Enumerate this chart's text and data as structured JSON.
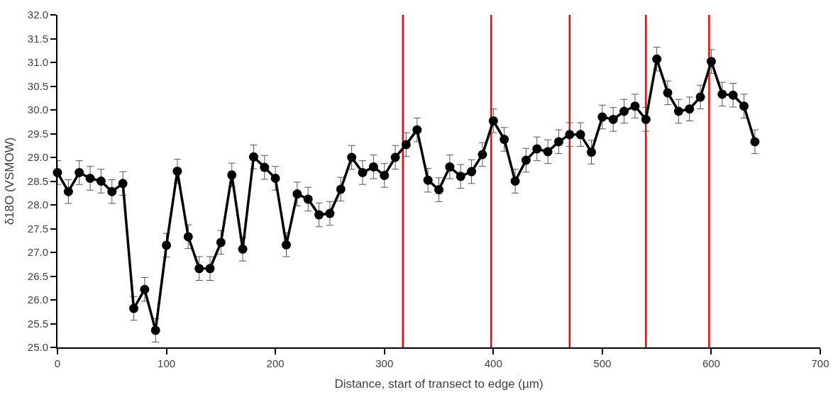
{
  "chart_data": {
    "type": "line",
    "xlabel": "Distance, start of transect to edge (µm)",
    "ylabel": "δ18O (VSMOW)",
    "x": [
      0,
      10,
      20,
      30,
      40,
      50,
      60,
      70,
      80,
      90,
      100,
      110,
      120,
      130,
      140,
      150,
      160,
      170,
      180,
      190,
      200,
      210,
      220,
      230,
      240,
      250,
      260,
      270,
      280,
      290,
      300,
      310,
      320,
      330,
      340,
      350,
      360,
      370,
      380,
      390,
      400,
      410,
      420,
      430,
      440,
      450,
      460,
      470,
      480,
      490,
      500,
      510,
      520,
      530,
      540,
      550,
      560,
      570,
      580,
      590,
      600,
      610,
      620,
      630,
      640
    ],
    "series": [
      {
        "color": "#000000",
        "values": [
          28.68,
          28.28,
          28.68,
          28.56,
          28.5,
          28.28,
          28.45,
          25.82,
          26.22,
          25.36,
          27.15,
          28.71,
          27.33,
          26.66,
          26.66,
          27.21,
          28.63,
          27.07,
          29.01,
          28.79,
          28.56,
          27.16,
          28.23,
          28.12,
          27.79,
          27.82,
          28.33,
          29.0,
          28.68,
          28.8,
          28.62,
          29.0,
          29.27,
          29.58,
          28.52,
          28.32,
          28.8,
          28.6,
          28.7,
          29.06,
          29.77,
          29.38,
          28.5,
          28.94,
          29.18,
          29.12,
          29.33,
          29.48,
          29.48,
          29.11,
          29.85,
          29.8,
          29.97,
          30.08,
          29.8,
          31.07,
          30.36,
          29.97,
          30.02,
          30.27,
          31.02,
          30.33,
          30.31,
          30.08,
          29.33
        ],
        "errors": [
          0.25,
          0.25,
          0.25,
          0.25,
          0.25,
          0.25,
          0.25,
          0.25,
          0.25,
          0.25,
          0.25,
          0.25,
          0.25,
          0.25,
          0.25,
          0.25,
          0.25,
          0.25,
          0.25,
          0.25,
          0.25,
          0.25,
          0.25,
          0.25,
          0.25,
          0.25,
          0.25,
          0.25,
          0.25,
          0.25,
          0.25,
          0.25,
          0.25,
          0.25,
          0.25,
          0.25,
          0.25,
          0.25,
          0.25,
          0.25,
          0.25,
          0.25,
          0.25,
          0.25,
          0.25,
          0.25,
          0.25,
          0.25,
          0.25,
          0.25,
          0.25,
          0.25,
          0.25,
          0.25,
          0.25,
          0.25,
          0.25,
          0.25,
          0.25,
          0.25,
          0.25,
          0.25,
          0.25,
          0.25,
          0.25
        ]
      }
    ],
    "marker": "circle",
    "line_style": "solid",
    "grid": false,
    "xlim": [
      0,
      700
    ],
    "xticks": [
      0,
      100,
      200,
      300,
      400,
      500,
      600,
      700
    ],
    "ylim": [
      25.0,
      32.0
    ],
    "yticks": [
      {
        "value": 25,
        "label": "25.0"
      },
      {
        "value": 25.5,
        "label": "25.5"
      },
      {
        "value": 26,
        "label": "26.0"
      },
      {
        "value": 26.5,
        "label": "26.5"
      },
      {
        "value": 27,
        "label": "27.0"
      },
      {
        "value": 27.5,
        "label": "27.5"
      },
      {
        "value": 28,
        "label": "28.0"
      },
      {
        "value": 28.5,
        "label": "28.5"
      },
      {
        "value": 29,
        "label": "29.0"
      },
      {
        "value": 29.5,
        "label": "29.5"
      },
      {
        "value": 30,
        "label": "30.0"
      },
      {
        "value": 30.5,
        "label": "30.5"
      },
      {
        "value": 31,
        "label": "31.0"
      },
      {
        "value": 31.5,
        "label": "31.5"
      },
      {
        "value": 32,
        "label": "32.0"
      }
    ],
    "ref_lines": [
      {
        "axis": "x",
        "value": 317,
        "color": "#ff0000"
      },
      {
        "axis": "x",
        "value": 398,
        "color": "#ff0000"
      },
      {
        "axis": "x",
        "value": 470,
        "color": "#ff0000"
      },
      {
        "axis": "x",
        "value": 540,
        "color": "#ff0000"
      },
      {
        "axis": "x",
        "value": 598,
        "color": "#ff0000"
      }
    ]
  }
}
